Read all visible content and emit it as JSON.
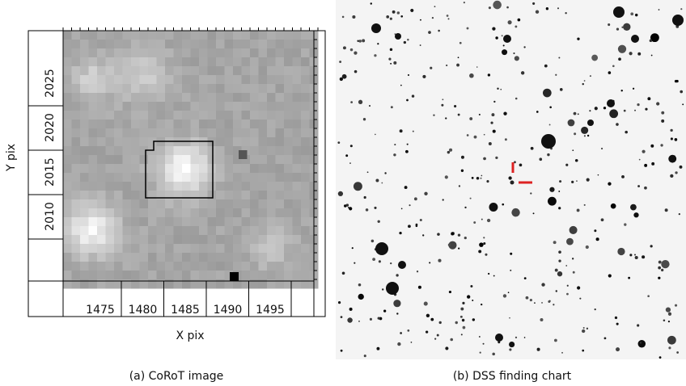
{
  "panels": [
    {
      "caption": "(a) CoRoT image",
      "xlabel": "X pix",
      "ylabel": "Y pix",
      "xticks": [
        1475,
        1480,
        1485,
        1490,
        1495
      ],
      "yticks": [
        2010,
        2015,
        2020,
        2025
      ]
    },
    {
      "caption": "(b) DSS finding chart"
    }
  ]
}
